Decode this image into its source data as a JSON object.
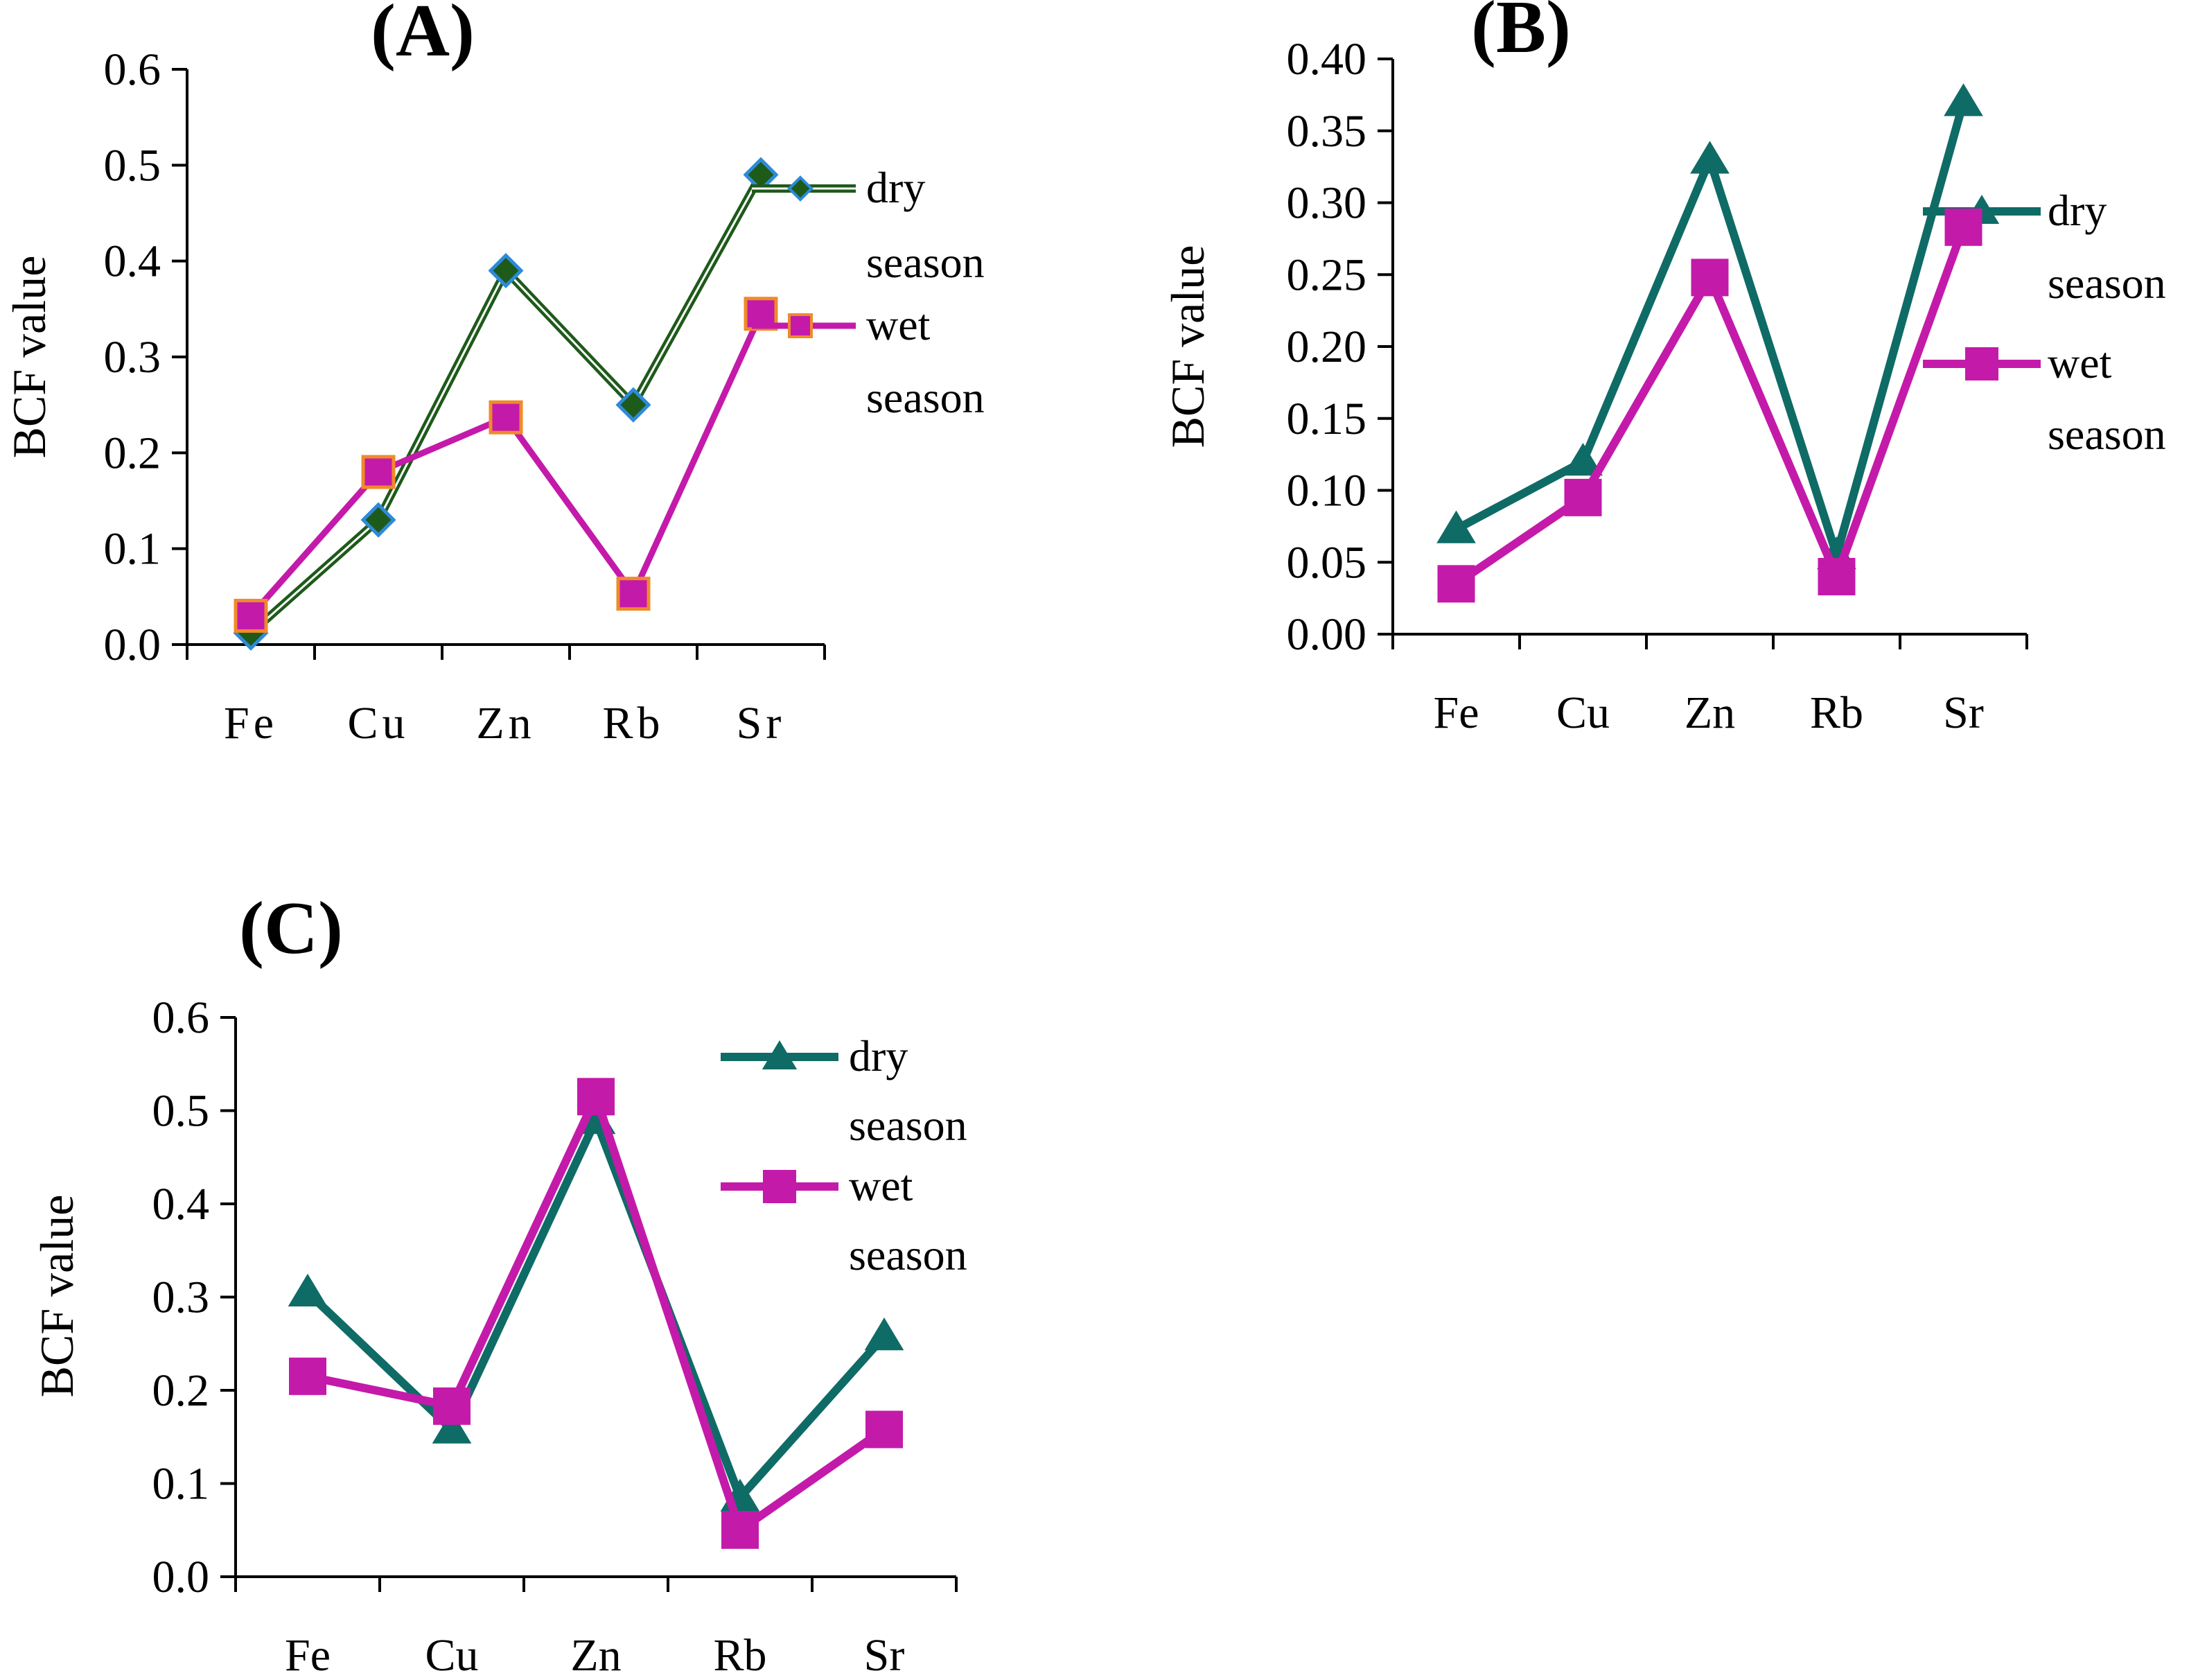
{
  "colors": {
    "dry_line": "#0f6b66",
    "wet_line": "#c41aaa",
    "dry_marker_a": "#1e5a1a",
    "dry_marker_a_edge": "#2f8ad8",
    "wet_marker_a_edge": "#f08a2a",
    "axis": "#000000"
  },
  "chart_data": [
    {
      "id": "A",
      "title": "(A)",
      "type": "line",
      "categories": [
        "Fe",
        "Cu",
        "Zn",
        "Rb",
        "Sr"
      ],
      "series": [
        {
          "name": "dry season",
          "legend_line1": "dry",
          "legend_line2": "season",
          "marker": "diamond",
          "values": [
            0.012,
            0.13,
            0.39,
            0.25,
            0.49
          ]
        },
        {
          "name": "wet season",
          "legend_line1": "wet",
          "legend_line2": "season",
          "marker": "square",
          "values": [
            0.03,
            0.18,
            0.237,
            0.053,
            0.345
          ]
        }
      ],
      "ylabel": "BCF value",
      "xlabel": "",
      "ylim": [
        0,
        0.6
      ],
      "yticks": [
        "0.0",
        "0.1",
        "0.2",
        "0.3",
        "0.4",
        "0.5",
        "0.6"
      ],
      "legend_position": "right"
    },
    {
      "id": "B",
      "title": "(B)",
      "type": "line",
      "categories": [
        "Fe",
        "Cu",
        "Zn",
        "Rb",
        "Sr"
      ],
      "series": [
        {
          "name": "dry season",
          "legend_line1": "dry",
          "legend_line2": "season",
          "marker": "triangle",
          "values": [
            0.073,
            0.12,
            0.33,
            0.055,
            0.37
          ]
        },
        {
          "name": "wet season",
          "legend_line1": "wet",
          "legend_line2": "season",
          "marker": "square",
          "values": [
            0.035,
            0.095,
            0.248,
            0.04,
            0.283
          ]
        }
      ],
      "ylabel": "BCF value",
      "xlabel": "",
      "ylim": [
        0,
        0.4
      ],
      "yticks": [
        "0.00",
        "0.05",
        "0.10",
        "0.15",
        "0.20",
        "0.25",
        "0.30",
        "0.35",
        "0.40"
      ],
      "legend_position": "right"
    },
    {
      "id": "C",
      "title": "(C)",
      "type": "line",
      "categories": [
        "Fe",
        "Cu",
        "Zn",
        "Rb",
        "Sr"
      ],
      "series": [
        {
          "name": "dry season",
          "legend_line1": "dry",
          "legend_line2": "season",
          "marker": "triangle",
          "values": [
            0.305,
            0.158,
            0.49,
            0.085,
            0.258
          ]
        },
        {
          "name": "wet season",
          "legend_line1": "wet",
          "legend_line2": "season",
          "marker": "square",
          "values": [
            0.215,
            0.183,
            0.515,
            0.05,
            0.158
          ]
        }
      ],
      "ylabel": "BCF value",
      "xlabel": "",
      "ylim": [
        0,
        0.6
      ],
      "yticks": [
        "0.0",
        "0.1",
        "0.2",
        "0.3",
        "0.4",
        "0.5",
        "0.6"
      ],
      "legend_position": "top-right"
    }
  ]
}
